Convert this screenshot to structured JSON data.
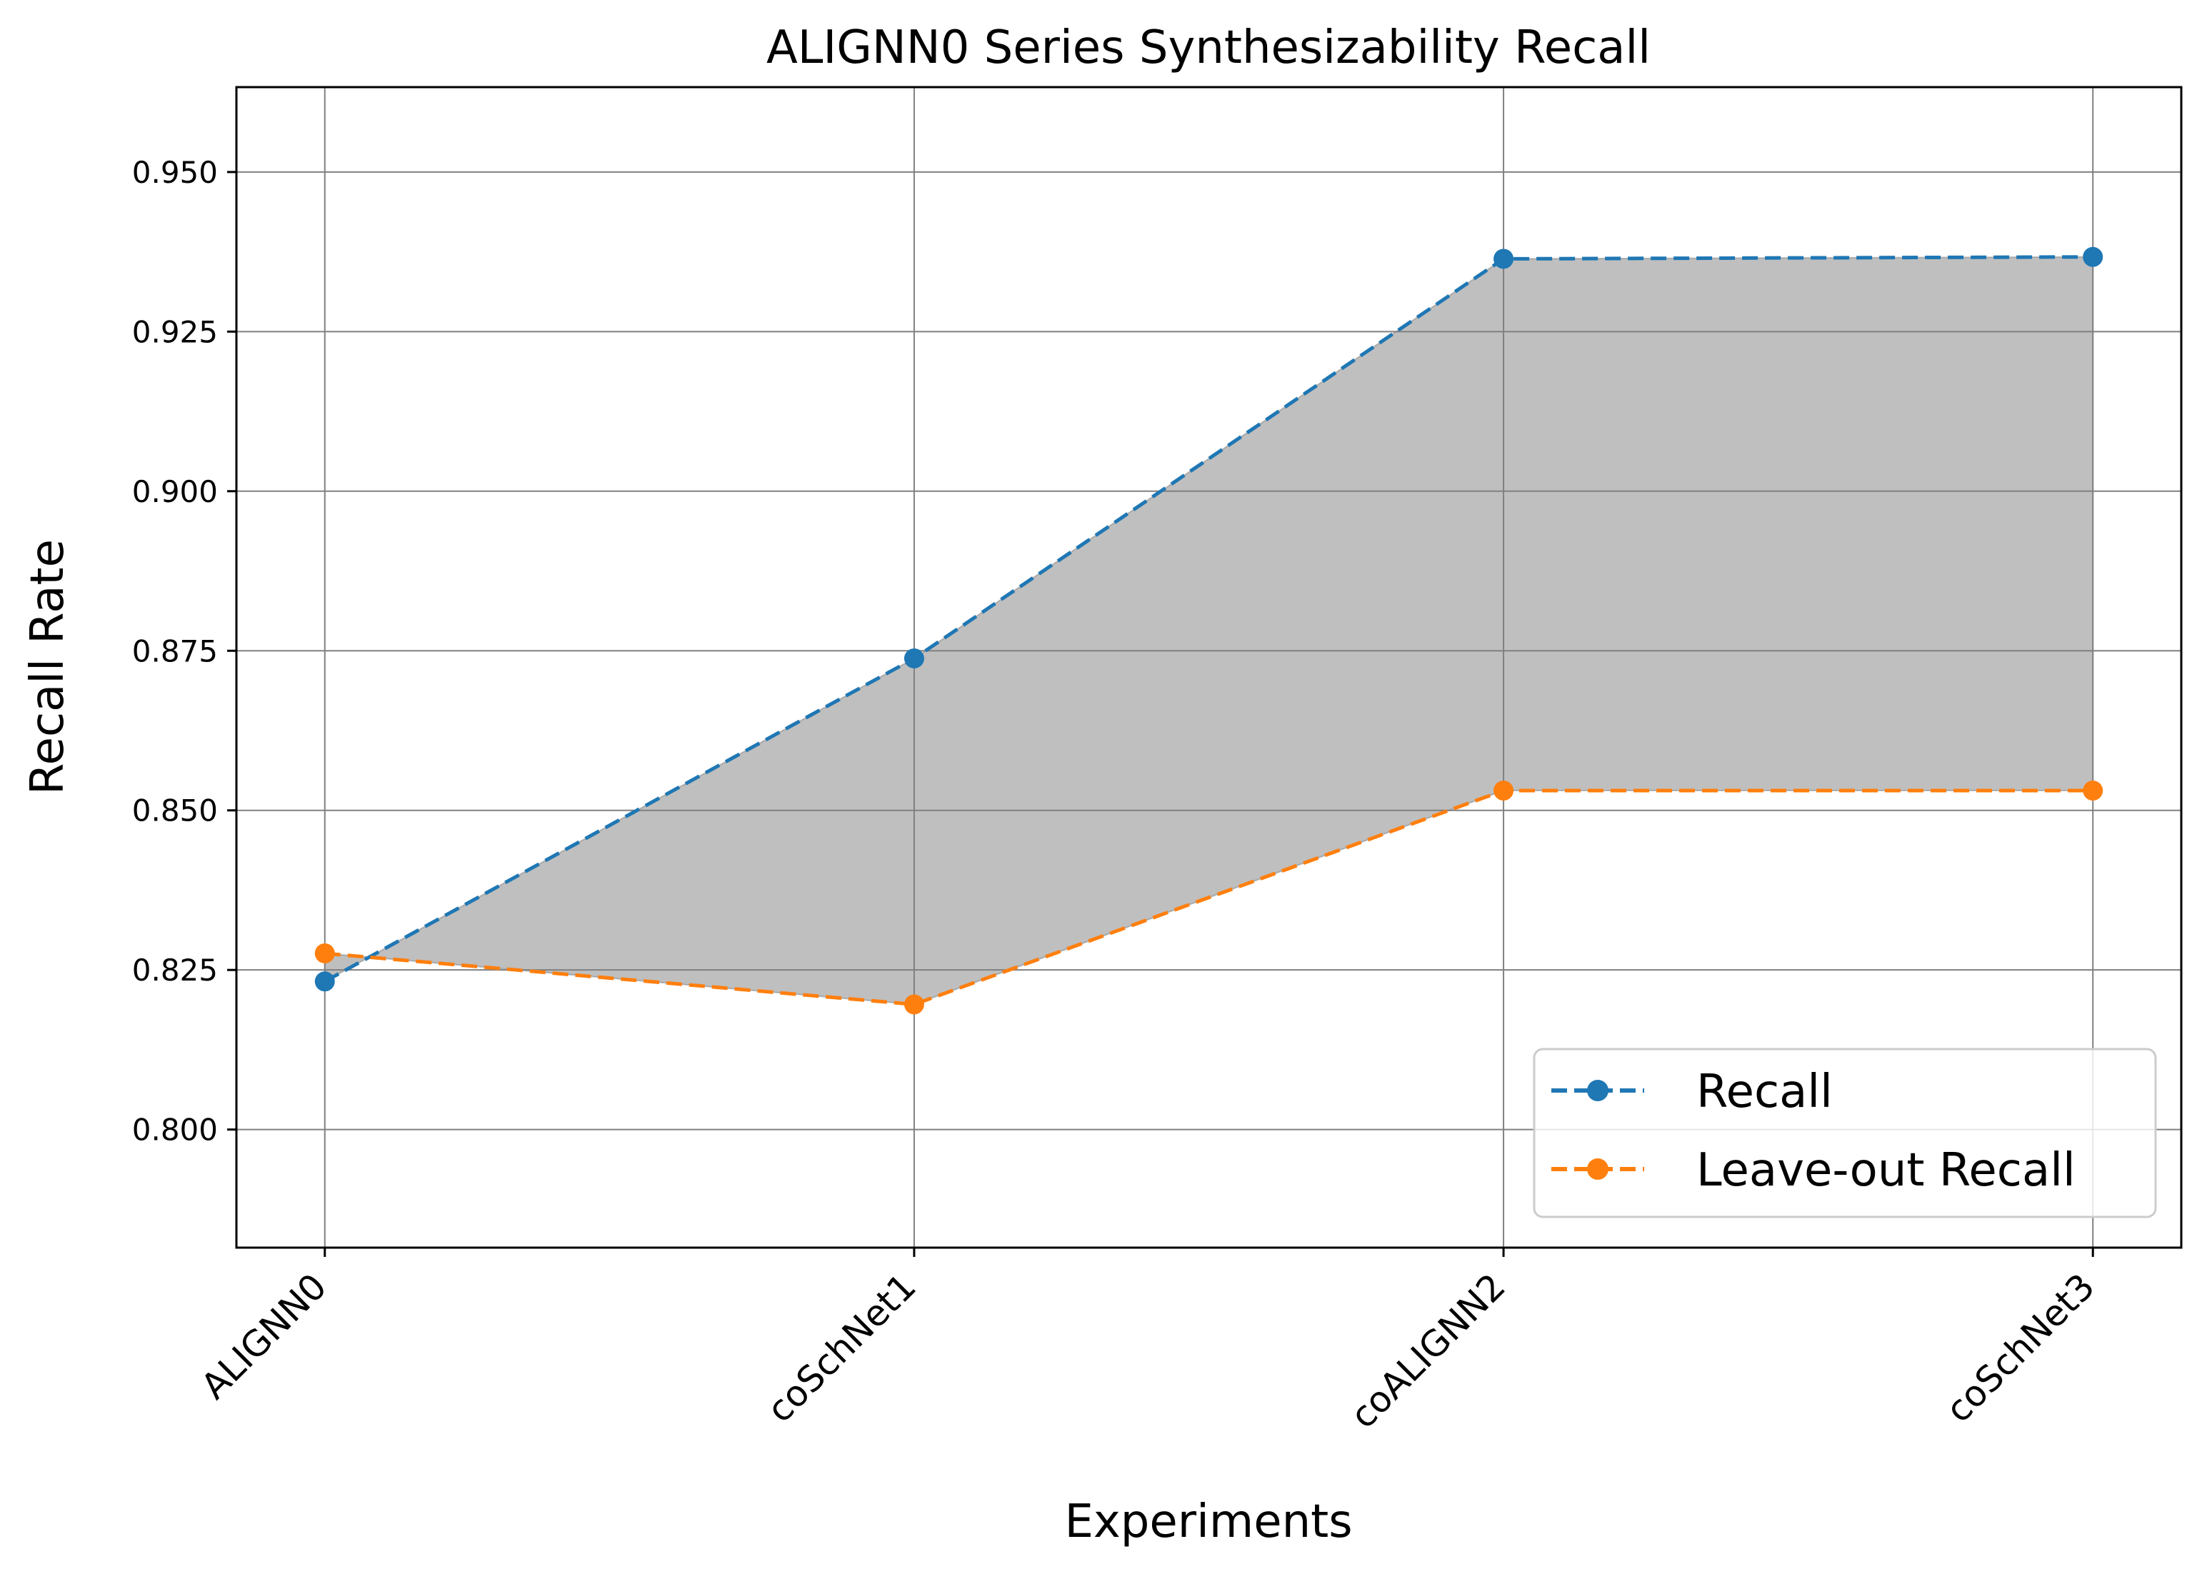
{
  "chart_data": {
    "type": "line",
    "title": "ALIGNN0 Series Synthesizability Recall",
    "xlabel": "Experiments",
    "ylabel": "Recall Rate",
    "categories": [
      "ALIGNN0",
      "coSchNet1",
      "coALIGNN2",
      "coSchNet3"
    ],
    "series": [
      {
        "name": "Recall",
        "values": [
          0.8232,
          0.8738,
          0.9364,
          0.9367
        ],
        "color": "#1f77b4",
        "line_style": "dashed",
        "marker": "circle"
      },
      {
        "name": "Leave-out Recall",
        "values": [
          0.8276,
          0.8196,
          0.8531,
          0.8531
        ],
        "color": "#ff7f0e",
        "line_style": "dashed",
        "marker": "circle"
      }
    ],
    "fill_between": {
      "series": [
        "Recall",
        "Leave-out Recall"
      ],
      "color": "#808080",
      "alpha": 0.5
    },
    "ylim": [
      0.7815,
      0.9633
    ],
    "yticks": [
      0.8,
      0.825,
      0.85,
      0.875,
      0.9,
      0.925,
      0.95
    ],
    "ytick_labels": [
      "0.800",
      "0.825",
      "0.850",
      "0.875",
      "0.900",
      "0.925",
      "0.950"
    ],
    "xlim": [
      -0.15,
      3.15
    ],
    "grid": true,
    "legend_position": "lower-right"
  }
}
